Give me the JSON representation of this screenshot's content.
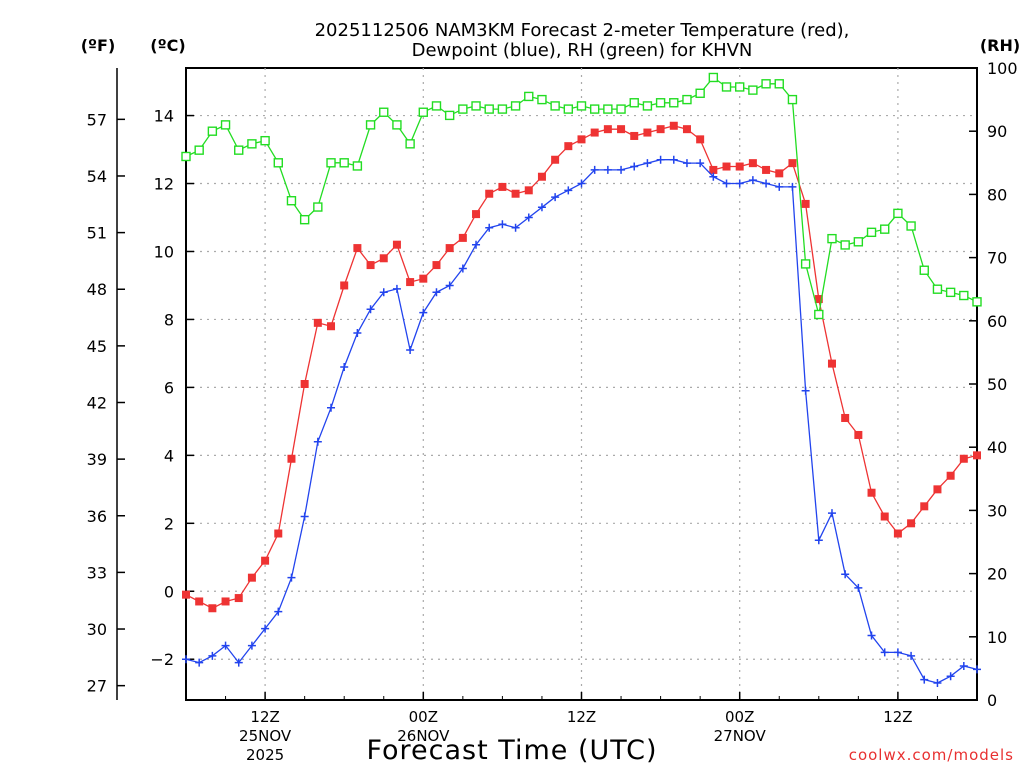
{
  "chart_data": {
    "type": "line",
    "title_line1": "2025112506 NAM3KM Forecast 2-meter Temperature (red),",
    "title_line2": "Dewpoint (blue), RH (green) for KHVN",
    "xlabel": "Forecast Time (UTC)",
    "unit_f": "(ºF)",
    "unit_c": "(ºC)",
    "unit_rh": "(RH)",
    "credit": "coolwx.com/models",
    "x_range_hours": [
      0,
      60
    ],
    "c_range": [
      -3.2,
      15.4
    ],
    "rh_range": [
      0,
      100
    ],
    "f_ticks": [
      "57",
      "54",
      "51",
      "48",
      "45",
      "42",
      "39",
      "36",
      "33",
      "30",
      "27"
    ],
    "c_ticks": [
      "14",
      "12",
      "10",
      "8",
      "6",
      "4",
      "2",
      "0",
      "−2"
    ],
    "rh_ticks": [
      "100",
      "90",
      "80",
      "70",
      "60",
      "50",
      "40",
      "30",
      "20",
      "10",
      "0"
    ],
    "x_ticks": [
      {
        "hour": 6,
        "label": "12Z",
        "sub1": "25NOV",
        "sub2": "2025"
      },
      {
        "hour": 18,
        "label": "00Z",
        "sub1": "26NOV",
        "sub2": ""
      },
      {
        "hour": 30,
        "label": "12Z",
        "sub1": "",
        "sub2": ""
      },
      {
        "hour": 42,
        "label": "00Z",
        "sub1": "27NOV",
        "sub2": ""
      },
      {
        "hour": 54,
        "label": "12Z",
        "sub1": "",
        "sub2": ""
      }
    ],
    "series": [
      {
        "name": "Temperature",
        "color": "#ee3333",
        "marker": "filled-square",
        "units": "C",
        "values": [
          -0.1,
          -0.3,
          -0.5,
          -0.3,
          -0.2,
          0.4,
          0.9,
          1.7,
          3.9,
          6.1,
          7.9,
          7.8,
          9.0,
          10.1,
          9.6,
          9.8,
          10.2,
          9.1,
          9.2,
          9.6,
          10.1,
          10.4,
          11.1,
          11.7,
          11.9,
          11.7,
          11.8,
          12.2,
          12.7,
          13.1,
          13.3,
          13.5,
          13.6,
          13.6,
          13.4,
          13.5,
          13.6,
          13.7,
          13.6,
          13.3,
          12.4,
          12.5,
          12.5,
          12.6,
          12.4,
          12.3,
          12.6,
          11.4,
          8.6,
          6.7,
          5.1,
          4.6,
          2.9,
          2.2,
          1.7,
          2.0,
          2.5,
          3.0,
          3.4,
          3.9,
          4.0
        ]
      },
      {
        "name": "Dewpoint",
        "color": "#2244ee",
        "marker": "plus",
        "units": "C",
        "values": [
          -2.0,
          -2.1,
          -1.9,
          -1.6,
          -2.1,
          -1.6,
          -1.1,
          -0.6,
          0.4,
          2.2,
          4.4,
          5.4,
          6.6,
          7.6,
          8.3,
          8.8,
          8.9,
          7.1,
          8.2,
          8.8,
          9.0,
          9.5,
          10.2,
          10.7,
          10.8,
          10.7,
          11.0,
          11.3,
          11.6,
          11.8,
          12.0,
          12.4,
          12.4,
          12.4,
          12.5,
          12.6,
          12.7,
          12.7,
          12.6,
          12.6,
          12.2,
          12.0,
          12.0,
          12.1,
          12.0,
          11.9,
          11.9,
          5.9,
          1.5,
          2.3,
          0.5,
          0.1,
          -1.3,
          -1.8,
          -1.8,
          -1.9,
          -2.6,
          -2.7,
          -2.5,
          -2.2,
          -2.3
        ]
      },
      {
        "name": "RH",
        "color": "#22dd22",
        "marker": "open-square",
        "units": "%",
        "values": [
          86,
          87,
          90,
          91,
          87,
          88,
          88.5,
          85,
          79,
          76,
          78,
          85,
          85,
          84.5,
          91,
          93,
          91,
          88,
          93,
          94,
          92.5,
          93.5,
          94,
          93.5,
          93.5,
          94,
          95.5,
          95,
          94,
          93.5,
          94,
          93.5,
          93.5,
          93.5,
          94.5,
          94,
          94.5,
          94.5,
          95,
          96,
          98.5,
          97,
          97,
          96.5,
          97.5,
          97.5,
          95,
          69,
          61,
          73,
          72,
          72.5,
          74,
          74.5,
          77,
          75,
          68,
          65,
          64.5,
          64,
          63
        ]
      }
    ]
  }
}
